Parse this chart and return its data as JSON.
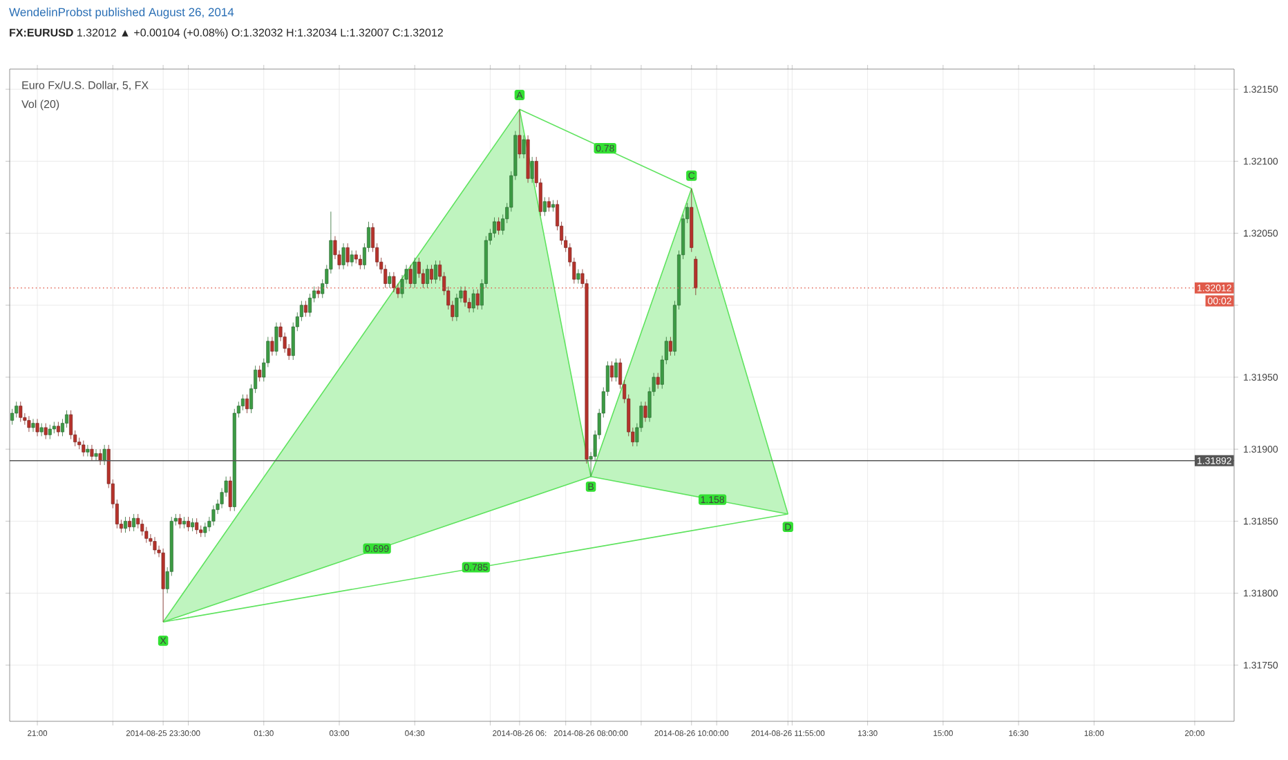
{
  "chart_data": {
    "type": "candlestick",
    "title": "WendelinProbst published August 26, 2014",
    "subtitle": "**FX:EURUSD** 1.32012 ▲ +0.00104 (+0.08%) O:1.32032 H:1.32034 L:1.32007 C:1.32012",
    "x": [
      "2014-08-25T20:30",
      "2014-08-25T20:35",
      "2014-08-25T20:40",
      "2014-08-25T20:45",
      "2014-08-25T20:50",
      "2014-08-25T20:55",
      "2014-08-25T21:00",
      "2014-08-25T21:05",
      "2014-08-25T21:10",
      "2014-08-25T21:15",
      "2014-08-25T21:20",
      "2014-08-25T21:25",
      "2014-08-25T21:30",
      "2014-08-25T21:35",
      "2014-08-25T21:40",
      "2014-08-25T21:45",
      "2014-08-25T21:50",
      "2014-08-25T21:55",
      "2014-08-25T22:00",
      "2014-08-25T22:05",
      "2014-08-25T22:10",
      "2014-08-25T22:15",
      "2014-08-25T22:20",
      "2014-08-25T22:25",
      "2014-08-25T22:30",
      "2014-08-25T22:35",
      "2014-08-25T22:40",
      "2014-08-25T22:45",
      "2014-08-25T22:50",
      "2014-08-25T22:55",
      "2014-08-25T23:00",
      "2014-08-25T23:05",
      "2014-08-25T23:10",
      "2014-08-25T23:15",
      "2014-08-25T23:20",
      "2014-08-25T23:25",
      "2014-08-25T23:30",
      "2014-08-25T23:35",
      "2014-08-25T23:40",
      "2014-08-25T23:45",
      "2014-08-25T23:50",
      "2014-08-25T23:55",
      "2014-08-26T00:00",
      "2014-08-26T00:05",
      "2014-08-26T00:10",
      "2014-08-26T00:15",
      "2014-08-26T00:20",
      "2014-08-26T00:25",
      "2014-08-26T00:30",
      "2014-08-26T00:35",
      "2014-08-26T00:40",
      "2014-08-26T00:45",
      "2014-08-26T00:50",
      "2014-08-26T00:55",
      "2014-08-26T01:00",
      "2014-08-26T01:05",
      "2014-08-26T01:10",
      "2014-08-26T01:15",
      "2014-08-26T01:20",
      "2014-08-26T01:25",
      "2014-08-26T01:30",
      "2014-08-26T01:35",
      "2014-08-26T01:40",
      "2014-08-26T01:45",
      "2014-08-26T01:50",
      "2014-08-26T01:55",
      "2014-08-26T02:00",
      "2014-08-26T02:05",
      "2014-08-26T02:10",
      "2014-08-26T02:15",
      "2014-08-26T02:20",
      "2014-08-26T02:25",
      "2014-08-26T02:30",
      "2014-08-26T02:35",
      "2014-08-26T02:40",
      "2014-08-26T02:45",
      "2014-08-26T02:50",
      "2014-08-26T02:55",
      "2014-08-26T03:00",
      "2014-08-26T03:05",
      "2014-08-26T03:10",
      "2014-08-26T03:15",
      "2014-08-26T03:20",
      "2014-08-26T03:25",
      "2014-08-26T03:30",
      "2014-08-26T03:35",
      "2014-08-26T03:40",
      "2014-08-26T03:45",
      "2014-08-26T03:50",
      "2014-08-26T03:55",
      "2014-08-26T04:00",
      "2014-08-26T04:05",
      "2014-08-26T04:10",
      "2014-08-26T04:15",
      "2014-08-26T04:20",
      "2014-08-26T04:25",
      "2014-08-26T04:30",
      "2014-08-26T04:35",
      "2014-08-26T04:40",
      "2014-08-26T04:45",
      "2014-08-26T04:50",
      "2014-08-26T04:55",
      "2014-08-26T05:00",
      "2014-08-26T05:05",
      "2014-08-26T05:10",
      "2014-08-26T05:15",
      "2014-08-26T05:20",
      "2014-08-26T05:25",
      "2014-08-26T05:30",
      "2014-08-26T05:35",
      "2014-08-26T05:40",
      "2014-08-26T05:45",
      "2014-08-26T05:50",
      "2014-08-26T05:55",
      "2014-08-26T06:00",
      "2014-08-26T06:05",
      "2014-08-26T06:10",
      "2014-08-26T06:15",
      "2014-08-26T06:20",
      "2014-08-26T06:25",
      "2014-08-26T06:30",
      "2014-08-26T06:35",
      "2014-08-26T06:40",
      "2014-08-26T06:45",
      "2014-08-26T06:50",
      "2014-08-26T06:55",
      "2014-08-26T07:00",
      "2014-08-26T07:05",
      "2014-08-26T07:10",
      "2014-08-26T07:15",
      "2014-08-26T07:20",
      "2014-08-26T07:25",
      "2014-08-26T07:30",
      "2014-08-26T07:35",
      "2014-08-26T07:40",
      "2014-08-26T07:45",
      "2014-08-26T07:50",
      "2014-08-26T07:55",
      "2014-08-26T08:00",
      "2014-08-26T08:05",
      "2014-08-26T08:10",
      "2014-08-26T08:15",
      "2014-08-26T08:20",
      "2014-08-26T08:25",
      "2014-08-26T08:30",
      "2014-08-26T08:35",
      "2014-08-26T08:40",
      "2014-08-26T08:45",
      "2014-08-26T08:50",
      "2014-08-26T08:55",
      "2014-08-26T09:00",
      "2014-08-26T09:05",
      "2014-08-26T09:10",
      "2014-08-26T09:15",
      "2014-08-26T09:20",
      "2014-08-26T09:25",
      "2014-08-26T09:30",
      "2014-08-26T09:35",
      "2014-08-26T09:40",
      "2014-08-26T09:45",
      "2014-08-26T09:50",
      "2014-08-26T09:55",
      "2014-08-26T10:00",
      "2014-08-26T10:05"
    ],
    "ohlc": [
      [
        1.3192,
        1.31928,
        1.31917,
        1.31925
      ],
      [
        1.31925,
        1.31933,
        1.31922,
        1.3193
      ],
      [
        1.3193,
        1.31933,
        1.31919,
        1.31922
      ],
      [
        1.31922,
        1.31925,
        1.31917,
        1.3192
      ],
      [
        1.3192,
        1.31923,
        1.31912,
        1.31915
      ],
      [
        1.31915,
        1.31921,
        1.31912,
        1.31918
      ],
      [
        1.31918,
        1.31921,
        1.31909,
        1.31912
      ],
      [
        1.31912,
        1.31918,
        1.31909,
        1.31915
      ],
      [
        1.31915,
        1.31918,
        1.31907,
        1.3191
      ],
      [
        1.3191,
        1.31917,
        1.31907,
        1.31914
      ],
      [
        1.31914,
        1.31919,
        1.31911,
        1.31916
      ],
      [
        1.31916,
        1.31919,
        1.31909,
        1.31912
      ],
      [
        1.31912,
        1.31921,
        1.31909,
        1.31918
      ],
      [
        1.31918,
        1.31927,
        1.31915,
        1.31924
      ],
      [
        1.31924,
        1.31927,
        1.31907,
        1.3191
      ],
      [
        1.3191,
        1.31913,
        1.31902,
        1.31905
      ],
      [
        1.31905,
        1.31908,
        1.319,
        1.31903
      ],
      [
        1.31903,
        1.31906,
        1.31895,
        1.31898
      ],
      [
        1.31898,
        1.31903,
        1.31895,
        1.319
      ],
      [
        1.319,
        1.31903,
        1.31892,
        1.31895
      ],
      [
        1.31895,
        1.319,
        1.31892,
        1.31897
      ],
      [
        1.31897,
        1.319,
        1.31889,
        1.31892
      ],
      [
        1.31892,
        1.31903,
        1.31889,
        1.319
      ],
      [
        1.319,
        1.31903,
        1.31873,
        1.31876
      ],
      [
        1.31876,
        1.31879,
        1.31859,
        1.31862
      ],
      [
        1.31862,
        1.31865,
        1.31845,
        1.31848
      ],
      [
        1.31848,
        1.31851,
        1.31842,
        1.31845
      ],
      [
        1.31845,
        1.31853,
        1.31842,
        1.3185
      ],
      [
        1.3185,
        1.31853,
        1.31843,
        1.31846
      ],
      [
        1.31846,
        1.31855,
        1.31843,
        1.31852
      ],
      [
        1.31852,
        1.31855,
        1.31845,
        1.31848
      ],
      [
        1.31848,
        1.31851,
        1.3184,
        1.31843
      ],
      [
        1.31843,
        1.31846,
        1.31835,
        1.31838
      ],
      [
        1.31838,
        1.31841,
        1.31833,
        1.31836
      ],
      [
        1.31836,
        1.31839,
        1.31827,
        1.3183
      ],
      [
        1.3183,
        1.31833,
        1.31825,
        1.31828
      ],
      [
        1.31828,
        1.31831,
        1.3178,
        1.31803
      ],
      [
        1.31803,
        1.31818,
        1.318,
        1.31815
      ],
      [
        1.31815,
        1.31853,
        1.31812,
        1.3185
      ],
      [
        1.3185,
        1.31855,
        1.31847,
        1.31852
      ],
      [
        1.31852,
        1.31855,
        1.31845,
        1.31848
      ],
      [
        1.31848,
        1.31853,
        1.31845,
        1.3185
      ],
      [
        1.3185,
        1.31853,
        1.31843,
        1.31846
      ],
      [
        1.31846,
        1.31852,
        1.31843,
        1.31849
      ],
      [
        1.31849,
        1.31852,
        1.31841,
        1.31844
      ],
      [
        1.31844,
        1.31847,
        1.31839,
        1.31842
      ],
      [
        1.31842,
        1.31849,
        1.31839,
        1.31846
      ],
      [
        1.31846,
        1.31853,
        1.31843,
        1.3185
      ],
      [
        1.3185,
        1.31861,
        1.31847,
        1.31858
      ],
      [
        1.31858,
        1.31865,
        1.31855,
        1.31862
      ],
      [
        1.31862,
        1.31873,
        1.31859,
        1.3187
      ],
      [
        1.3187,
        1.31881,
        1.31867,
        1.31878
      ],
      [
        1.31878,
        1.31881,
        1.31857,
        1.3186
      ],
      [
        1.3186,
        1.31928,
        1.31857,
        1.31925
      ],
      [
        1.31925,
        1.31933,
        1.31922,
        1.3193
      ],
      [
        1.3193,
        1.31938,
        1.31927,
        1.31935
      ],
      [
        1.31935,
        1.31938,
        1.31925,
        1.31928
      ],
      [
        1.31928,
        1.31945,
        1.31925,
        1.31942
      ],
      [
        1.31942,
        1.31958,
        1.31939,
        1.31955
      ],
      [
        1.31955,
        1.31958,
        1.31947,
        1.3195
      ],
      [
        1.3195,
        1.31963,
        1.31947,
        1.3196
      ],
      [
        1.3196,
        1.31978,
        1.31957,
        1.31975
      ],
      [
        1.31975,
        1.31978,
        1.31965,
        1.31968
      ],
      [
        1.31968,
        1.31988,
        1.31965,
        1.31985
      ],
      [
        1.31985,
        1.31988,
        1.31975,
        1.31978
      ],
      [
        1.31978,
        1.31981,
        1.31967,
        1.3197
      ],
      [
        1.3197,
        1.31973,
        1.31962,
        1.31965
      ],
      [
        1.31965,
        1.31988,
        1.31962,
        1.31985
      ],
      [
        1.31985,
        1.31995,
        1.31982,
        1.31992
      ],
      [
        1.31992,
        1.32003,
        1.31989,
        1.32
      ],
      [
        1.32,
        1.32003,
        1.31992,
        1.31995
      ],
      [
        1.31995,
        1.32008,
        1.31992,
        1.32005
      ],
      [
        1.32005,
        1.32013,
        1.32002,
        1.3201
      ],
      [
        1.3201,
        1.32013,
        1.32005,
        1.32008
      ],
      [
        1.32008,
        1.32018,
        1.32005,
        1.32015
      ],
      [
        1.32015,
        1.32028,
        1.32012,
        1.32025
      ],
      [
        1.32025,
        1.32065,
        1.32022,
        1.32045
      ],
      [
        1.32045,
        1.32048,
        1.32032,
        1.32035
      ],
      [
        1.32035,
        1.32038,
        1.32025,
        1.32028
      ],
      [
        1.32028,
        1.32043,
        1.32025,
        1.3204
      ],
      [
        1.3204,
        1.32043,
        1.32027,
        1.3203
      ],
      [
        1.3203,
        1.32038,
        1.32027,
        1.32035
      ],
      [
        1.32035,
        1.32038,
        1.32029,
        1.32032
      ],
      [
        1.32032,
        1.32035,
        1.32025,
        1.32028
      ],
      [
        1.32028,
        1.32043,
        1.32025,
        1.3204
      ],
      [
        1.3204,
        1.32058,
        1.32037,
        1.32054
      ],
      [
        1.32054,
        1.32057,
        1.32037,
        1.3204
      ],
      [
        1.3204,
        1.32043,
        1.32027,
        1.3203
      ],
      [
        1.3203,
        1.32033,
        1.32022,
        1.32025
      ],
      [
        1.32025,
        1.32028,
        1.32012,
        1.32015
      ],
      [
        1.32015,
        1.32023,
        1.32012,
        1.3202
      ],
      [
        1.3202,
        1.32023,
        1.32009,
        1.32012
      ],
      [
        1.32012,
        1.32015,
        1.32005,
        1.32008
      ],
      [
        1.32008,
        1.32021,
        1.32005,
        1.32018
      ],
      [
        1.32018,
        1.32028,
        1.32015,
        1.32025
      ],
      [
        1.32025,
        1.32028,
        1.32012,
        1.32015
      ],
      [
        1.32015,
        1.32033,
        1.32012,
        1.3203
      ],
      [
        1.3203,
        1.32033,
        1.32019,
        1.32022
      ],
      [
        1.32022,
        1.32025,
        1.32012,
        1.32015
      ],
      [
        1.32015,
        1.32028,
        1.32012,
        1.32025
      ],
      [
        1.32025,
        1.32028,
        1.32015,
        1.32018
      ],
      [
        1.32018,
        1.32031,
        1.32015,
        1.32028
      ],
      [
        1.32028,
        1.32031,
        1.32017,
        1.3202
      ],
      [
        1.3202,
        1.32023,
        1.32007,
        1.3201
      ],
      [
        1.3201,
        1.32013,
        1.31997,
        1.32
      ],
      [
        1.32,
        1.32003,
        1.31989,
        1.31992
      ],
      [
        1.31992,
        1.32008,
        1.31989,
        1.32005
      ],
      [
        1.32005,
        1.32013,
        1.32002,
        1.3201
      ],
      [
        1.3201,
        1.32013,
        1.31999,
        1.32002
      ],
      [
        1.32002,
        1.32005,
        1.31995,
        1.31998
      ],
      [
        1.31998,
        1.32011,
        1.31995,
        1.32008
      ],
      [
        1.32008,
        1.32011,
        1.31997,
        1.32
      ],
      [
        1.32,
        1.32018,
        1.31997,
        1.32015
      ],
      [
        1.32015,
        1.32048,
        1.32012,
        1.32045
      ],
      [
        1.32045,
        1.32053,
        1.32042,
        1.3205
      ],
      [
        1.3205,
        1.32061,
        1.32047,
        1.32058
      ],
      [
        1.32058,
        1.32061,
        1.32049,
        1.32052
      ],
      [
        1.32052,
        1.32063,
        1.32049,
        1.3206
      ],
      [
        1.3206,
        1.32071,
        1.32057,
        1.32068
      ],
      [
        1.32068,
        1.32093,
        1.32065,
        1.3209
      ],
      [
        1.3209,
        1.32121,
        1.32087,
        1.32118
      ],
      [
        1.32118,
        1.32136,
        1.32102,
        1.32105
      ],
      [
        1.32105,
        1.32118,
        1.32102,
        1.32115
      ],
      [
        1.32115,
        1.32118,
        1.32085,
        1.32088
      ],
      [
        1.32088,
        1.32103,
        1.32085,
        1.321
      ],
      [
        1.321,
        1.32103,
        1.32082,
        1.32085
      ],
      [
        1.32085,
        1.32088,
        1.32062,
        1.32065
      ],
      [
        1.32065,
        1.32075,
        1.32062,
        1.32072
      ],
      [
        1.32072,
        1.32075,
        1.32065,
        1.32068
      ],
      [
        1.32068,
        1.32073,
        1.32065,
        1.3207
      ],
      [
        1.3207,
        1.32073,
        1.32052,
        1.32055
      ],
      [
        1.32055,
        1.32058,
        1.32042,
        1.32045
      ],
      [
        1.32045,
        1.32048,
        1.32037,
        1.3204
      ],
      [
        1.3204,
        1.32043,
        1.32027,
        1.3203
      ],
      [
        1.3203,
        1.32033,
        1.32015,
        1.32018
      ],
      [
        1.32018,
        1.32025,
        1.32015,
        1.32022
      ],
      [
        1.32022,
        1.32025,
        1.32012,
        1.32015
      ],
      [
        1.32015,
        1.32018,
        1.3189,
        1.31893
      ],
      [
        1.31893,
        1.31898,
        1.31881,
        1.31895
      ],
      [
        1.31895,
        1.31913,
        1.31892,
        1.3191
      ],
      [
        1.3191,
        1.31928,
        1.31907,
        1.31925
      ],
      [
        1.31925,
        1.31943,
        1.31922,
        1.3194
      ],
      [
        1.3194,
        1.31961,
        1.31937,
        1.31958
      ],
      [
        1.31958,
        1.31961,
        1.31947,
        1.3195
      ],
      [
        1.3195,
        1.31963,
        1.31947,
        1.3196
      ],
      [
        1.3196,
        1.31963,
        1.31942,
        1.31945
      ],
      [
        1.31945,
        1.31948,
        1.31932,
        1.31935
      ],
      [
        1.31935,
        1.31938,
        1.31909,
        1.31912
      ],
      [
        1.31912,
        1.31915,
        1.31902,
        1.31905
      ],
      [
        1.31905,
        1.31918,
        1.31902,
        1.31915
      ],
      [
        1.31915,
        1.31933,
        1.31912,
        1.3193
      ],
      [
        1.3193,
        1.31933,
        1.31919,
        1.31922
      ],
      [
        1.31922,
        1.31943,
        1.31919,
        1.3194
      ],
      [
        1.3194,
        1.31953,
        1.31937,
        1.3195
      ],
      [
        1.3195,
        1.31953,
        1.31942,
        1.31945
      ],
      [
        1.31945,
        1.31965,
        1.31942,
        1.31962
      ],
      [
        1.31962,
        1.31978,
        1.31959,
        1.31975
      ],
      [
        1.31975,
        1.31978,
        1.31965,
        1.31968
      ],
      [
        1.31968,
        1.32003,
        1.31965,
        1.32
      ],
      [
        1.32,
        1.32038,
        1.31997,
        1.32035
      ],
      [
        1.32035,
        1.32063,
        1.32032,
        1.3206
      ],
      [
        1.3206,
        1.32071,
        1.32057,
        1.32068
      ],
      [
        1.32068,
        1.32081,
        1.32037,
        1.3204
      ],
      [
        1.32032,
        1.32034,
        1.32007,
        1.32012
      ]
    ],
    "series": [
      {
        "type": "line",
        "color": "#5ee35e",
        "x": [
          "2014-08-25T23:30",
          "2014-08-26T06:35",
          "2014-08-26T08:00"
        ],
        "values": [
          1.3178,
          1.32136,
          1.31881
        ],
        "lower": [
          1.3178,
          1.31864,
          1.31881
        ],
        "upper": [
          1.3178,
          1.32136,
          1.31881
        ]
      },
      {
        "type": "line",
        "color": "#5ee35e",
        "x": [
          "2014-08-26T08:00",
          "2014-08-26T10:00",
          "2014-08-26T11:55"
        ],
        "values": [
          1.31881,
          1.32081,
          1.31855
        ],
        "lower": [
          1.31881,
          1.31868,
          1.31855
        ],
        "upper": [
          1.31881,
          1.32081,
          1.31855
        ]
      },
      {
        "type": "line",
        "color": "#5ee35e",
        "x": [
          "2014-08-25T23:30",
          "2014-08-26T08:00",
          "2014-08-26T11:55"
        ],
        "values": [
          1.3178,
          1.31881,
          1.31855
        ]
      },
      {
        "type": "line",
        "color": "#5ee35e",
        "x": [
          "2014-08-26T06:35",
          "2014-08-26T10:00"
        ],
        "values": [
          1.32136,
          1.32081
        ]
      },
      {
        "type": "line",
        "color": "#5ee35e",
        "x": [
          "2014-08-25T23:30",
          "2014-08-26T11:55"
        ],
        "values": [
          1.3178,
          1.31855
        ]
      }
    ],
    "xlim": [
      "2014-08-25T20:27",
      "2014-08-26T20:47"
    ],
    "ylim": [
      1.31711,
      1.32164
    ],
    "xticks": [
      {
        "value": "2014-08-25T21:00",
        "label": "21:00"
      },
      {
        "value": "2014-08-25T22:30",
        "label": null
      },
      {
        "value": "2014-08-25T23:30",
        "label": "2014-08-25 23:30:00"
      },
      {
        "value": "2014-08-26T00:00",
        "label": null
      },
      {
        "value": "2014-08-26T01:30",
        "label": "01:30"
      },
      {
        "value": "2014-08-26T03:00",
        "label": "03:00"
      },
      {
        "value": "2014-08-26T04:30",
        "label": "04:30"
      },
      {
        "value": "2014-08-26T06:00",
        "label": null
      },
      {
        "value": "2014-08-26T06:35",
        "label": "2014-08-26 06:"
      },
      {
        "value": "2014-08-26T07:30",
        "label": null
      },
      {
        "value": "2014-08-26T08:00",
        "label": "2014-08-26 08:00:00"
      },
      {
        "value": "2014-08-26T09:00",
        "label": null
      },
      {
        "value": "2014-08-26T10:00",
        "label": "2014-08-26 10:00:00"
      },
      {
        "value": "2014-08-26T10:30",
        "label": null
      },
      {
        "value": "2014-08-26T11:55",
        "label": "2014-08-26 11:55:00"
      },
      {
        "value": "2014-08-26T12:00",
        "label": null
      },
      {
        "value": "2014-08-26T13:30",
        "label": "13:30"
      },
      {
        "value": "2014-08-26T15:00",
        "label": "15:00"
      },
      {
        "value": "2014-08-26T16:30",
        "label": "16:30"
      },
      {
        "value": "2014-08-26T18:00",
        "label": "18:00"
      },
      {
        "value": "2014-08-26T20:00",
        "label": "20:00"
      }
    ],
    "yticks": [
      {
        "value": 1.3175,
        "label": "1.31750"
      },
      {
        "value": 1.318,
        "label": "1.31800"
      },
      {
        "value": 1.3185,
        "label": "1.31850"
      },
      {
        "value": 1.319,
        "label": "1.31900"
      },
      {
        "value": 1.3195,
        "label": "1.31950"
      },
      {
        "value": 1.32,
        "label": null
      },
      {
        "value": 1.3205,
        "label": "1.32050"
      },
      {
        "value": 1.321,
        "label": "1.32100"
      },
      {
        "value": 1.3215,
        "label": "1.32150"
      }
    ],
    "grid": true,
    "ref_lines": [
      {
        "axis": "y",
        "value": 1.32012,
        "label": "1.32012",
        "color": "#e05a4a",
        "line_style": "dotted"
      },
      {
        "axis": "y",
        "value": 1.31892,
        "label": "1.31892",
        "color": "#555555",
        "line_style": "solid"
      }
    ],
    "annotations": [
      {
        "text": "X",
        "x": "2014-08-25T23:30",
        "y": 1.31767
      },
      {
        "text": "A",
        "x": "2014-08-26T06:35",
        "y": 1.32146
      },
      {
        "text": "B",
        "x": "2014-08-26T08:00",
        "y": 1.31874
      },
      {
        "text": "C",
        "x": "2014-08-26T10:00",
        "y": 1.3209
      },
      {
        "text": "D",
        "x": "2014-08-26T11:55",
        "y": 1.31846
      },
      {
        "text": "0.699",
        "x": "2014-08-26T03:45",
        "y": 1.31831
      },
      {
        "text": "0.78",
        "x": "2014-08-26T08:17",
        "y": 1.32109
      },
      {
        "text": "1.158",
        "x": "2014-08-26T10:25",
        "y": 1.31865
      },
      {
        "text": "0.785",
        "x": "2014-08-26T05:43",
        "y": 1.31818
      },
      "Euro Fx/U.S. Dollar, 5, FX",
      "Vol (20)",
      "00:02"
    ]
  }
}
